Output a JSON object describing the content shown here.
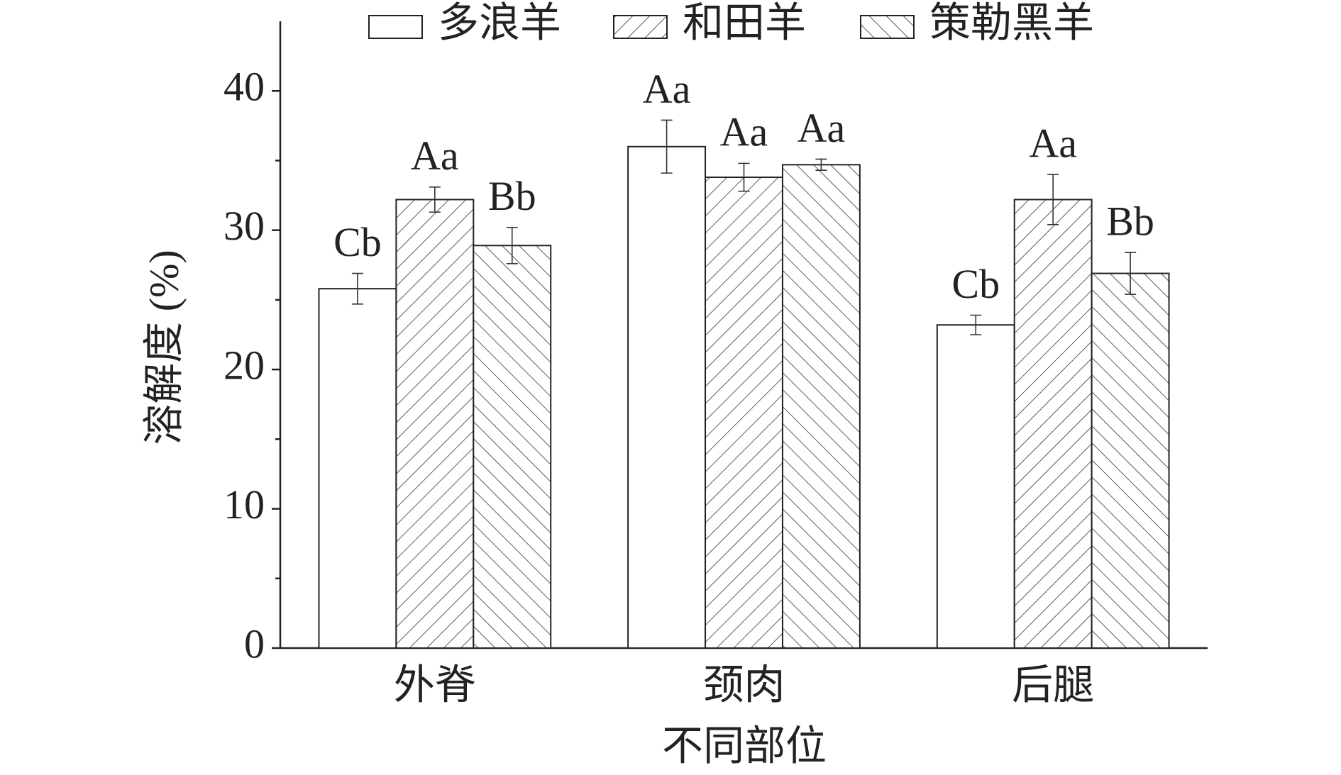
{
  "chart_data": {
    "type": "bar",
    "x_label": "不同部位",
    "y_label": "溶解度 (%)",
    "categories": [
      "外脊",
      "颈肉",
      "后腿"
    ],
    "series": [
      {
        "name": "多浪羊",
        "color": "#ffffff",
        "pattern": "none",
        "values": [
          25.8,
          36.0,
          23.2
        ],
        "errors": [
          1.1,
          1.9,
          0.7
        ],
        "labels": [
          "Cb",
          "Aa",
          "Cb"
        ]
      },
      {
        "name": "和田羊",
        "color": "#ffffff",
        "pattern": "forward-hatch",
        "values": [
          32.2,
          33.8,
          32.2
        ],
        "errors": [
          0.9,
          1.0,
          1.8
        ],
        "labels": [
          "Aa",
          "Aa",
          "Aa"
        ]
      },
      {
        "name": "策勒黑羊",
        "color": "#ffffff",
        "pattern": "back-hatch",
        "values": [
          28.9,
          34.7,
          26.9
        ],
        "errors": [
          1.3,
          0.4,
          1.5
        ],
        "labels": [
          "Bb",
          "Aa",
          "Bb"
        ]
      }
    ],
    "ylim": [
      0,
      45
    ],
    "yticks": [
      0,
      10,
      20,
      30,
      40
    ],
    "minor_yticks": [
      5,
      15,
      25,
      35
    ],
    "legend": "top"
  }
}
